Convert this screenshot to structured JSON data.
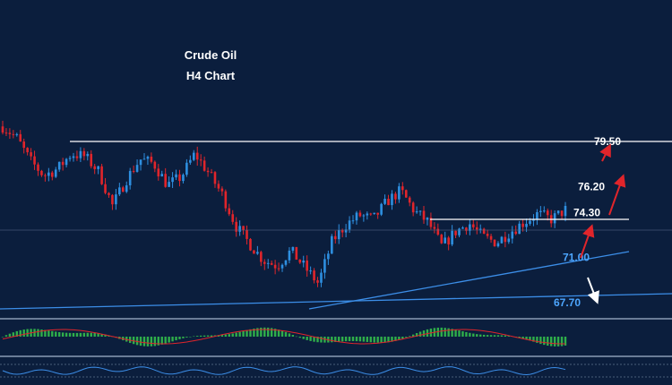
{
  "chart_data": {
    "type": "candlestick",
    "title": "Crude Oil",
    "subtitle": "H4 Chart",
    "y_domain_approx": [
      66.5,
      82.0
    ],
    "levels": [
      {
        "label": "79.50",
        "value": 79.5,
        "color": "#ffffff",
        "direction": "up"
      },
      {
        "label": "76.20",
        "value": 76.2,
        "color": "#ffffff",
        "direction": "up"
      },
      {
        "label": "74.30",
        "value": 74.3,
        "color": "#ffffff",
        "direction": "up"
      },
      {
        "label": "71.00",
        "value": 71.0,
        "color": "#4da6ff",
        "direction": "down"
      },
      {
        "label": "67.70",
        "value": 67.7,
        "color": "#4da6ff",
        "direction": "down"
      }
    ],
    "price_path_approx": [
      80.6,
      79.8,
      78.1,
      77.0,
      77.5,
      78.6,
      78.4,
      77.3,
      74.8,
      76.7,
      78.2,
      77.9,
      76.3,
      76.9,
      78.6,
      77.2,
      75.6,
      73.3,
      72.0,
      70.8,
      70.4,
      71.5,
      70.3,
      69.1,
      72.2,
      73.4,
      74.1,
      73.8,
      75.1,
      75.9,
      74.4,
      73.6,
      71.8,
      72.9,
      73.5,
      72.5,
      72.1,
      72.9,
      73.6,
      74.2,
      73.8,
      74.5
    ],
    "colors": {
      "up": "#2e8fe0",
      "down": "#e0252b",
      "background": "#0b1e3d"
    },
    "grid": false,
    "indicators": [
      "histogram oscillator",
      "line oscillator"
    ]
  }
}
